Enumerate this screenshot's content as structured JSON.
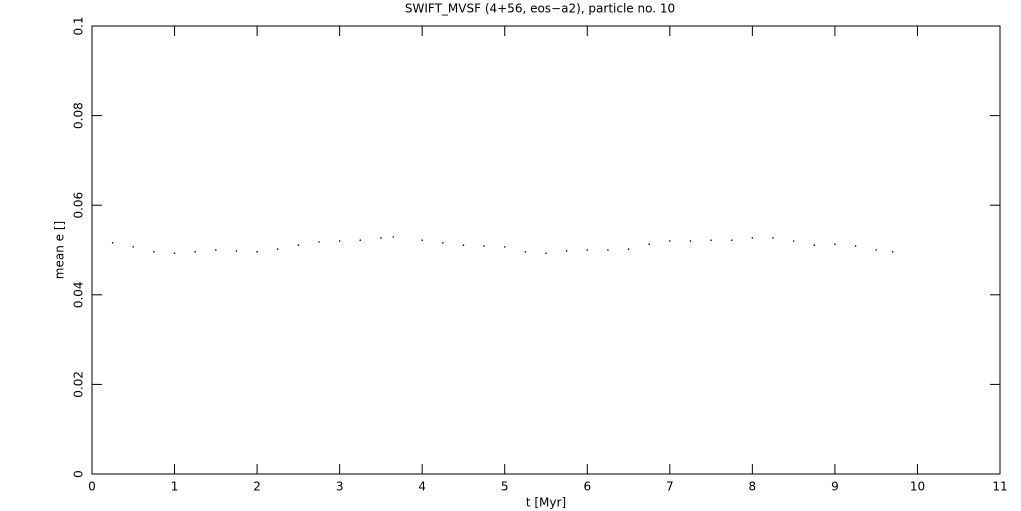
{
  "chart_data": {
    "type": "scatter",
    "title": "SWIFT_MVSF (4+56, eos−a2), particle no. 10",
    "x_label": "t [Myr]",
    "y_label": "mean e []",
    "x": [
      0.25,
      0.5,
      0.75,
      1.0,
      1.25,
      1.5,
      1.75,
      2.0,
      2.25,
      2.5,
      2.75,
      3.0,
      3.25,
      3.5,
      3.65,
      4.0,
      4.25,
      4.5,
      4.75,
      5.0,
      5.25,
      5.5,
      5.75,
      6.0,
      6.25,
      6.5,
      6.75,
      7.0,
      7.25,
      7.5,
      7.75,
      8.0,
      8.25,
      8.5,
      8.75,
      9.0,
      9.25,
      9.5,
      9.7
    ],
    "y": [
      0.0516,
      0.0507,
      0.0496,
      0.0493,
      0.0496,
      0.05,
      0.0498,
      0.0496,
      0.0502,
      0.0511,
      0.0518,
      0.052,
      0.0522,
      0.0527,
      0.0529,
      0.0522,
      0.0516,
      0.0511,
      0.0509,
      0.0507,
      0.0496,
      0.0493,
      0.0498,
      0.05,
      0.05,
      0.0502,
      0.0513,
      0.052,
      0.052,
      0.0522,
      0.0522,
      0.0527,
      0.0527,
      0.052,
      0.0511,
      0.0513,
      0.0509,
      0.05,
      0.0496
    ],
    "color": "#000000",
    "xlim": [
      0,
      11
    ],
    "xticks": [
      0,
      1,
      2,
      3,
      4,
      5,
      6,
      7,
      8,
      9,
      10,
      11
    ],
    "ylim": [
      0,
      0.1
    ],
    "yticks": [
      0,
      0.02,
      0.04,
      0.06,
      0.08,
      0.1
    ]
  }
}
